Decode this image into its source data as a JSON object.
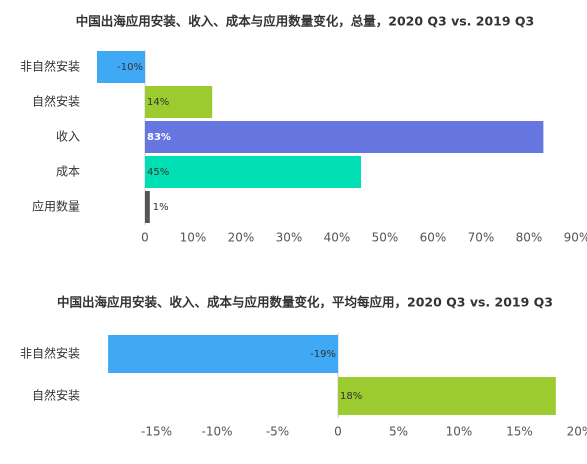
{
  "chart_data": [
    {
      "type": "bar",
      "orientation": "horizontal",
      "title": "中国出海应用安装、收入、成本与应用数量变化，总量，2020 Q3 vs. 2019 Q3",
      "categories": [
        "非自然安装",
        "自然安装",
        "收入",
        "成本",
        "应用数量"
      ],
      "values": [
        -10,
        14,
        83,
        45,
        1
      ],
      "value_labels": [
        "-10%",
        "14%",
        "83%",
        "45%",
        "1%"
      ],
      "colors": [
        "#3fa9f5",
        "#9bcb2f",
        "#6676e0",
        "#00e0b4",
        "#555555"
      ],
      "xlim": [
        -10,
        90
      ],
      "xticks": [
        0,
        {
          "value": 10,
          "label": "10%"
        },
        {
          "value": 20,
          "label": "20%"
        },
        {
          "value": 30,
          "label": "30%"
        },
        {
          "value": 40,
          "label": "40%"
        },
        {
          "value": 50,
          "label": "50%"
        },
        {
          "value": 60,
          "label": "60%"
        },
        {
          "value": 70,
          "label": "70%"
        },
        {
          "value": 80,
          "label": "80%"
        },
        {
          "value": 90,
          "label": "90%"
        }
      ]
    },
    {
      "type": "bar",
      "orientation": "horizontal",
      "title": "中国出海应用安装、收入、成本与应用数量变化，平均每应用，2020 Q3 vs. 2019 Q3",
      "categories": [
        "非自然安装",
        "自然安装"
      ],
      "values": [
        -19,
        18
      ],
      "value_labels": [
        "-19%",
        "18%"
      ],
      "colors": [
        "#3fa9f5",
        "#9bcb2f"
      ],
      "xlim": [
        -20,
        20
      ],
      "xticks": [
        {
          "value": -15,
          "label": "-15%"
        },
        {
          "value": -10,
          "label": "-10%"
        },
        {
          "value": -5,
          "label": "-5%"
        },
        0,
        {
          "value": 5,
          "label": "5%"
        },
        {
          "value": 10,
          "label": "10%"
        },
        {
          "value": 15,
          "label": "15%"
        },
        {
          "value": 20,
          "label": "20%"
        }
      ]
    }
  ]
}
